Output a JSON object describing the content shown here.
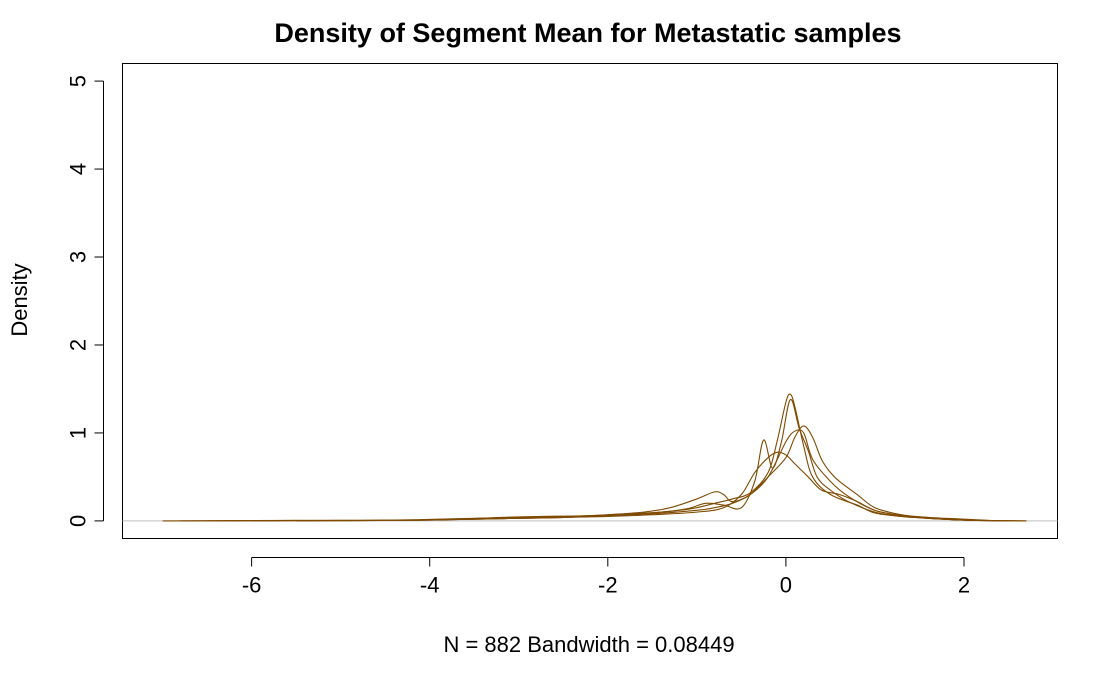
{
  "chart_data": {
    "type": "line",
    "title": "Density of Segment Mean for Metastatic samples",
    "xlabel": "N = 882   Bandwidth = 0.08449",
    "ylabel": "Density",
    "xlim": [
      -7.45,
      3.05
    ],
    "ylim": [
      -0.2,
      5.2
    ],
    "x_ticks": [
      -6,
      -4,
      -2,
      0,
      2
    ],
    "x_tick_labels": [
      "-6",
      "-4",
      "-2",
      "0",
      "2"
    ],
    "y_ticks": [
      0,
      1,
      2,
      3,
      4,
      5
    ],
    "y_tick_labels": [
      "0",
      "1",
      "2",
      "3",
      "4",
      "5"
    ],
    "grid": false,
    "zero_line": true,
    "line_color": "#7f4a00",
    "zero_line_color": "#bebebe",
    "series": [
      {
        "x": [
          -7.0,
          -5.5,
          -4.5,
          -3.5,
          -3.0,
          -2.5,
          -2.0,
          -1.5,
          -1.2,
          -1.0,
          -0.8,
          -0.6,
          -0.4,
          -0.2,
          -0.1,
          0.0,
          0.05,
          0.1,
          0.2,
          0.3,
          0.5,
          0.8,
          1.0,
          1.3,
          1.6,
          2.0,
          2.4,
          2.7
        ],
        "y": [
          0.0,
          0.005,
          0.005,
          0.02,
          0.03,
          0.04,
          0.06,
          0.09,
          0.12,
          0.15,
          0.2,
          0.25,
          0.32,
          0.55,
          0.9,
          1.35,
          1.44,
          1.3,
          0.85,
          0.5,
          0.3,
          0.18,
          0.09,
          0.05,
          0.03,
          0.01,
          0.003,
          0.0
        ]
      },
      {
        "x": [
          -6.8,
          -5.5,
          -4.5,
          -3.5,
          -3.0,
          -2.5,
          -2.0,
          -1.6,
          -1.3,
          -1.0,
          -0.8,
          -0.7,
          -0.6,
          -0.4,
          -0.2,
          0.0,
          0.1,
          0.2,
          0.3,
          0.5,
          0.7,
          1.0,
          1.3,
          1.6,
          2.0,
          2.4,
          2.7
        ],
        "y": [
          0.0,
          0.005,
          0.008,
          0.03,
          0.04,
          0.05,
          0.07,
          0.1,
          0.15,
          0.25,
          0.33,
          0.3,
          0.22,
          0.3,
          0.5,
          0.9,
          1.02,
          1.0,
          0.7,
          0.45,
          0.28,
          0.12,
          0.06,
          0.03,
          0.01,
          0.003,
          0.0
        ]
      },
      {
        "x": [
          -6.5,
          -5.0,
          -4.0,
          -3.2,
          -2.8,
          -2.2,
          -1.8,
          -1.4,
          -1.1,
          -0.9,
          -0.7,
          -0.5,
          -0.35,
          -0.25,
          -0.15,
          -0.05,
          0.05,
          0.15,
          0.25,
          0.35,
          0.5,
          0.7,
          1.0,
          1.3,
          1.6,
          2.0,
          2.5
        ],
        "y": [
          0.0,
          0.005,
          0.01,
          0.04,
          0.05,
          0.06,
          0.08,
          0.1,
          0.14,
          0.2,
          0.18,
          0.15,
          0.45,
          0.92,
          0.6,
          0.9,
          1.38,
          1.05,
          0.8,
          0.5,
          0.35,
          0.22,
          0.1,
          0.05,
          0.03,
          0.01,
          0.0
        ]
      },
      {
        "x": [
          -6.0,
          -5.0,
          -4.0,
          -3.0,
          -2.5,
          -2.0,
          -1.5,
          -1.0,
          -0.8,
          -0.6,
          -0.4,
          -0.2,
          0.0,
          0.1,
          0.2,
          0.3,
          0.4,
          0.5,
          0.6,
          0.8,
          1.0,
          1.3,
          1.6,
          2.0,
          2.4
        ],
        "y": [
          0.0,
          0.005,
          0.01,
          0.03,
          0.04,
          0.06,
          0.08,
          0.12,
          0.15,
          0.2,
          0.3,
          0.5,
          0.72,
          0.95,
          1.08,
          0.95,
          0.7,
          0.55,
          0.45,
          0.3,
          0.15,
          0.07,
          0.04,
          0.02,
          0.0
        ]
      },
      {
        "x": [
          -5.5,
          -4.5,
          -3.5,
          -3.0,
          -2.5,
          -2.0,
          -1.5,
          -1.0,
          -0.7,
          -0.5,
          -0.35,
          -0.2,
          -0.1,
          0.0,
          0.1,
          0.25,
          0.4,
          0.6,
          0.8,
          1.0,
          1.3,
          1.6,
          2.0,
          2.4
        ],
        "y": [
          0.0,
          0.005,
          0.02,
          0.03,
          0.04,
          0.05,
          0.07,
          0.1,
          0.15,
          0.3,
          0.55,
          0.72,
          0.78,
          0.75,
          0.65,
          0.5,
          0.35,
          0.3,
          0.22,
          0.12,
          0.06,
          0.03,
          0.01,
          0.0
        ]
      }
    ]
  }
}
